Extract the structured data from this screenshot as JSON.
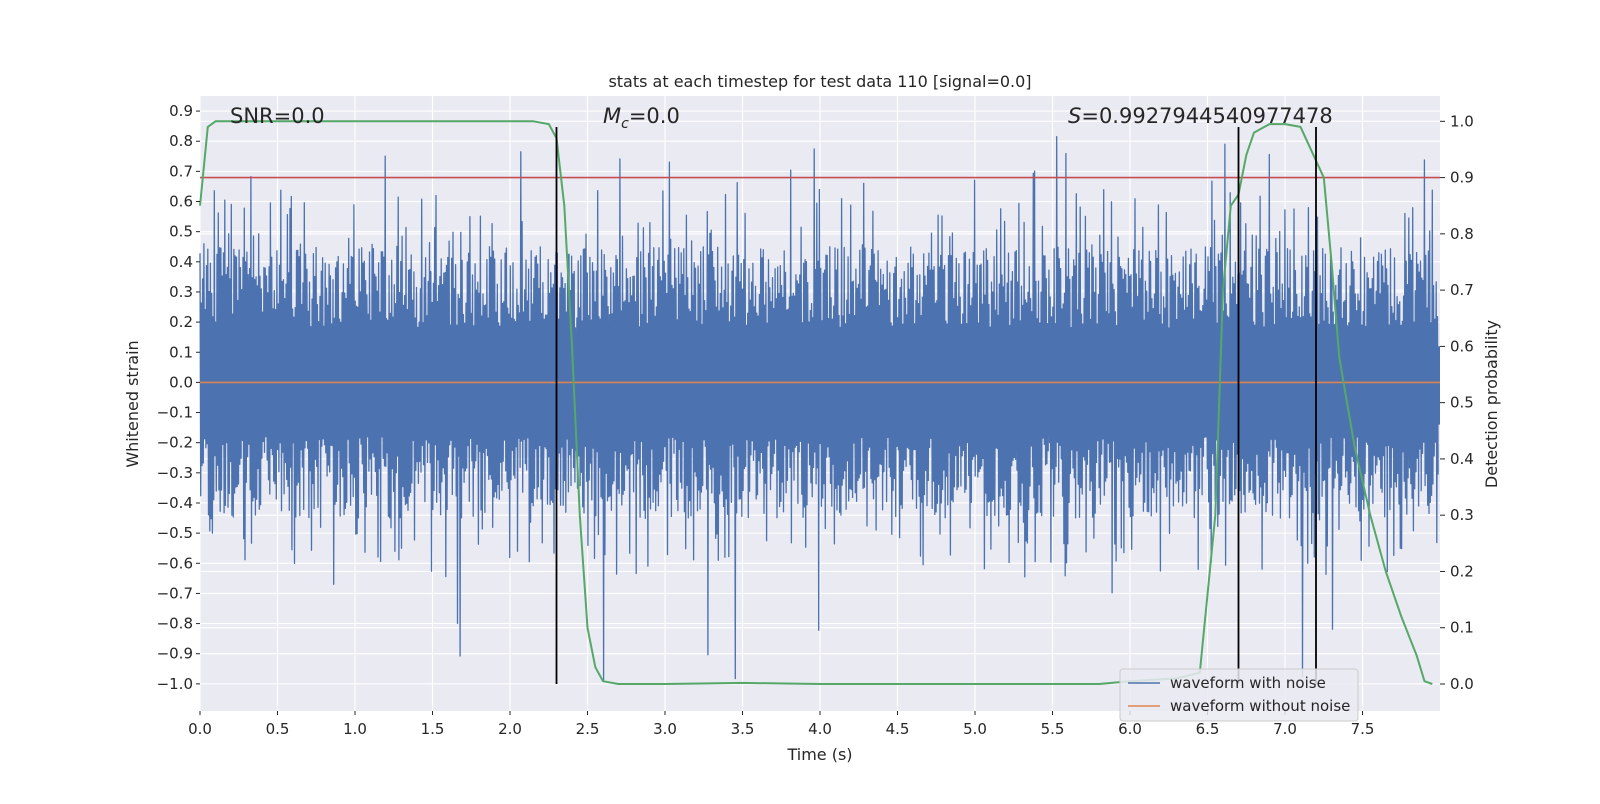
{
  "chart_data": {
    "type": "line",
    "title": "stats at each timestep for test data 110 [signal=0.0]",
    "xlabel": "Time (s)",
    "ylabel": "Whitened strain",
    "y2label": "Detection probability",
    "xlim": [
      0.0,
      8.0
    ],
    "ylim": [
      -1.09,
      0.95
    ],
    "y2lim": [
      -0.048,
      1.045
    ],
    "x_ticks": [
      0.0,
      0.5,
      1.0,
      1.5,
      2.0,
      2.5,
      3.0,
      3.5,
      4.0,
      4.5,
      5.0,
      5.5,
      6.0,
      6.5,
      7.0,
      7.5
    ],
    "x_tick_labels": [
      "0.0",
      "0.5",
      "1.0",
      "1.5",
      "2.0",
      "2.5",
      "3.0",
      "3.5",
      "4.0",
      "4.5",
      "5.0",
      "5.5",
      "6.0",
      "6.5",
      "7.0",
      "7.5"
    ],
    "y_ticks": [
      0.9,
      0.8,
      0.7,
      0.6,
      0.5,
      0.4,
      0.3,
      0.2,
      0.1,
      0.0,
      -0.1,
      -0.2,
      -0.3,
      -0.4,
      -0.5,
      -0.6,
      -0.7,
      -0.8,
      -0.9,
      -1.0
    ],
    "y_tick_labels": [
      "0.9",
      "0.8",
      "0.7",
      "0.6",
      "0.5",
      "0.4",
      "0.3",
      "0.2",
      "0.1",
      "0.0",
      "−0.1",
      "−0.2",
      "−0.3",
      "−0.4",
      "−0.5",
      "−0.6",
      "−0.7",
      "−0.8",
      "−0.9",
      "−1.0"
    ],
    "y2_ticks": [
      1.0,
      0.9,
      0.8,
      0.7,
      0.6,
      0.5,
      0.4,
      0.3,
      0.2,
      0.1,
      0.0
    ],
    "y2_tick_labels": [
      "1.0",
      "0.9",
      "0.8",
      "0.7",
      "0.6",
      "0.5",
      "0.4",
      "0.3",
      "0.2",
      "0.1",
      "0.0"
    ],
    "grid": true,
    "legend_position": "lower-right",
    "series": [
      {
        "name": "waveform with noise",
        "axis": "left",
        "color": "#4c72b0",
        "kind": "noise",
        "description": "dense whitened noise, core band about -0.45 to 0.45, spikes up to 0.86 and down to -1.0",
        "core_range": [
          -0.45,
          0.45
        ],
        "peak_max": 0.86,
        "peak_min": -1.0
      },
      {
        "name": "waveform without noise",
        "axis": "left",
        "color": "#dd8452",
        "x": [
          0.0,
          8.0
        ],
        "y": [
          0.0,
          0.0
        ]
      },
      {
        "name": "detection probability",
        "axis": "right",
        "color": "#55a868",
        "x": [
          0.0,
          0.05,
          0.1,
          0.2,
          0.5,
          1.0,
          1.5,
          2.0,
          2.15,
          2.25,
          2.3,
          2.35,
          2.4,
          2.45,
          2.5,
          2.55,
          2.6,
          2.7,
          3.0,
          3.5,
          4.0,
          4.5,
          5.0,
          5.5,
          5.8,
          6.0,
          6.3,
          6.45,
          6.55,
          6.6,
          6.65,
          6.7,
          6.75,
          6.8,
          6.9,
          7.0,
          7.1,
          7.15,
          7.2,
          7.25,
          7.3,
          7.35,
          7.45,
          7.55,
          7.65,
          7.75,
          7.85,
          7.9,
          7.95
        ],
        "y": [
          0.85,
          0.99,
          1.0,
          1.0,
          1.0,
          1.0,
          1.0,
          1.0,
          1.0,
          0.995,
          0.97,
          0.85,
          0.6,
          0.3,
          0.1,
          0.03,
          0.005,
          0.0,
          0.0,
          0.002,
          0.0,
          0.0,
          0.0,
          0.0,
          0.0,
          0.005,
          0.01,
          0.02,
          0.3,
          0.7,
          0.85,
          0.87,
          0.94,
          0.98,
          0.995,
          0.995,
          0.99,
          0.96,
          0.93,
          0.9,
          0.75,
          0.58,
          0.42,
          0.3,
          0.2,
          0.12,
          0.05,
          0.005,
          0.0
        ]
      }
    ],
    "hlines": [
      {
        "axis": "right",
        "y": 0.9,
        "color": "#c44e52"
      }
    ],
    "vlines": [
      {
        "x": 2.3,
        "y2_from": 0.0,
        "y2_to": 0.99,
        "color": "#000000"
      },
      {
        "x": 6.7,
        "y2_from": 0.0,
        "y2_to": 0.99,
        "color": "#000000"
      },
      {
        "x": 7.2,
        "y2_from": 0.0,
        "y2_to": 0.99,
        "color": "#000000"
      }
    ],
    "annotations": [
      {
        "text": "SNR=0.0",
        "x": 0.2,
        "y": 0.9
      },
      {
        "text": "M_c=0.0",
        "x": 2.6,
        "y": 0.9
      },
      {
        "text": "S=0.9927944540977478",
        "x": 5.6,
        "y": 0.9
      }
    ],
    "legend": [
      {
        "label": "waveform with noise",
        "color": "#4c72b0"
      },
      {
        "label": "waveform without noise",
        "color": "#dd8452"
      }
    ]
  },
  "style": {
    "axes_bg": "#eaeaf2",
    "grid_color": "#ffffff",
    "text_color": "#262626"
  },
  "labels": {
    "mc_symbol": "M",
    "mc_sub": "c",
    "mc_rest": "=0.0",
    "s_symbol": "S",
    "s_rest": "=0.9927944540977478",
    "snr_text": "SNR=0.0"
  }
}
